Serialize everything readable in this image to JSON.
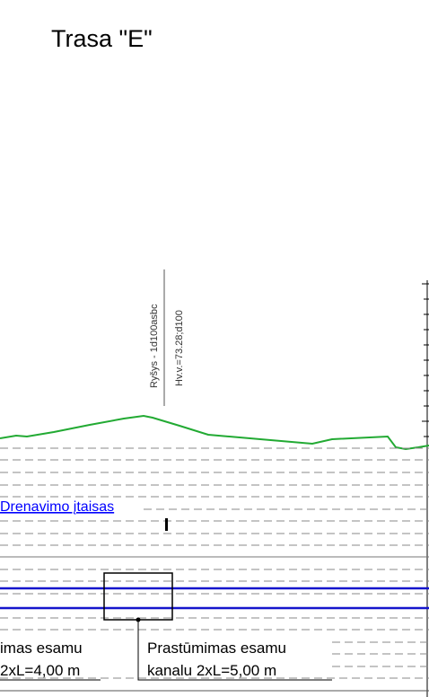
{
  "title": "Trasa \"E\"",
  "annotation": {
    "line1": "Ryšys - 1d100asbc",
    "line2": "Hv.v.=73.28;d100"
  },
  "drainage_link": {
    "label": "Drenavimo įtaisas",
    "color": "#0000ff"
  },
  "labels": {
    "left_line1": "imas esamu",
    "left_line2": "2xL=4,00 m",
    "right_line1": "Prastūmimas esamu",
    "right_line2": "kanalu 2xL=5,00 m"
  },
  "colors": {
    "terrain": "#22aa33",
    "pipe": "#1515cc",
    "dash": "#8a8a8a",
    "ink": "#000000"
  }
}
